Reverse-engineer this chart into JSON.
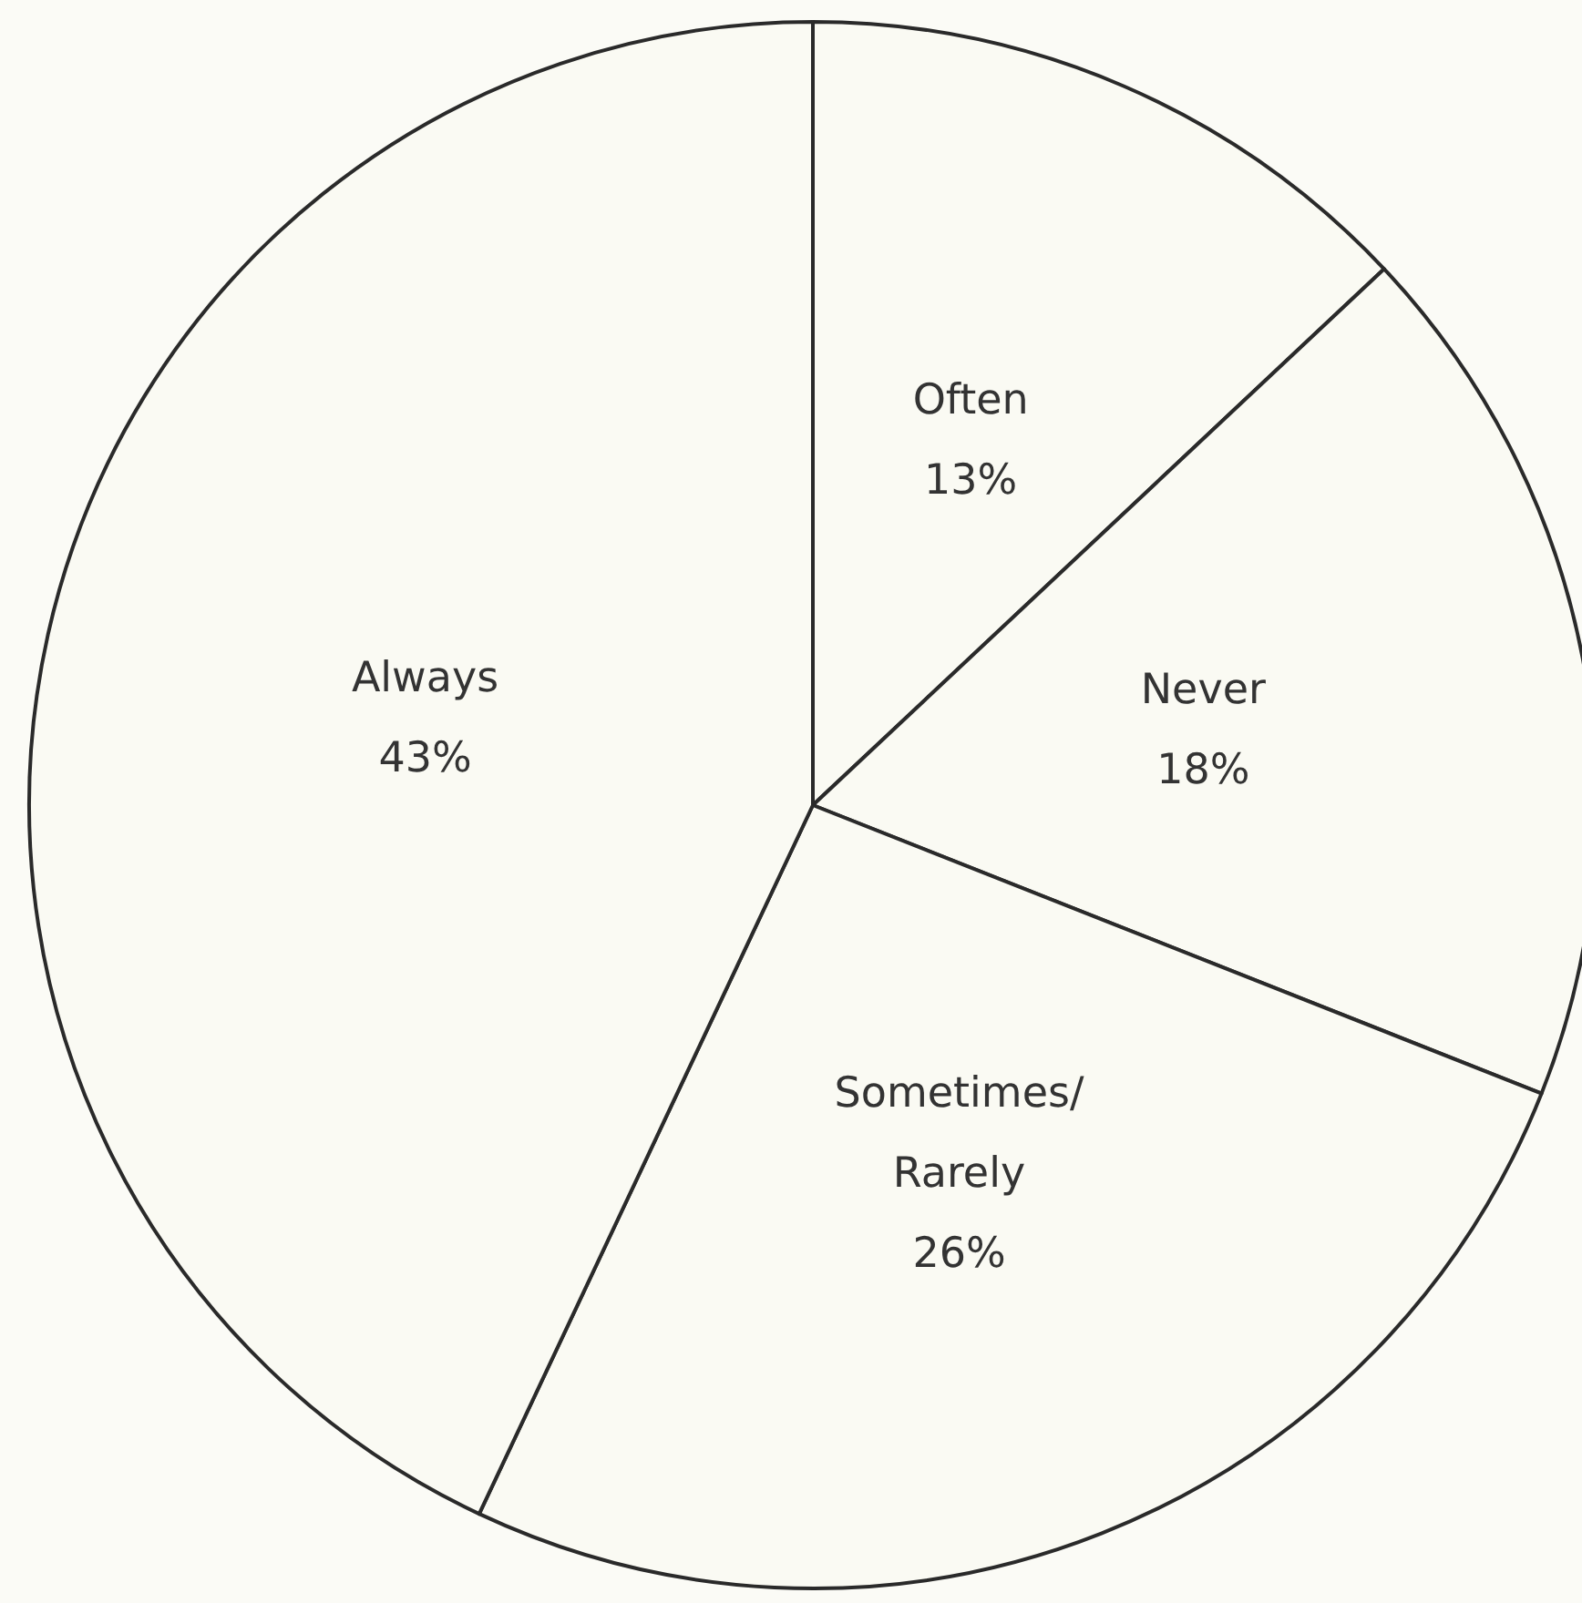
{
  "chart_data": {
    "type": "pie",
    "categories": [
      "Often",
      "Never",
      "Sometimes/ Rarely",
      "Always"
    ],
    "values": [
      13,
      18,
      26,
      43
    ],
    "value_labels": [
      "13%",
      "18%",
      "26%",
      "43%"
    ],
    "colors": [
      "#fafaf3",
      "#fafaf3",
      "#fafaf3",
      "#fafaf3"
    ],
    "legend": false
  }
}
